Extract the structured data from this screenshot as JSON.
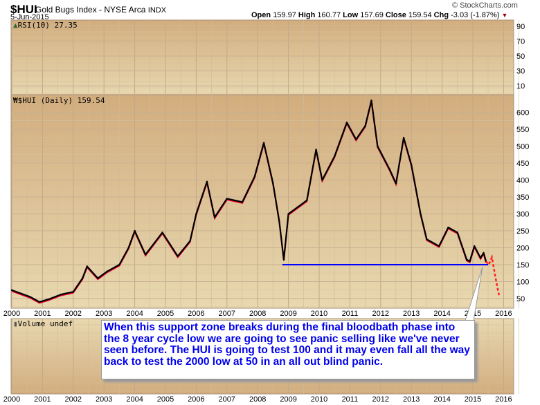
{
  "header": {
    "symbol": "$HUI",
    "name": "Gold Bugs Index - NYSE Arca",
    "exchange": "INDX",
    "date": "5-Jun-2015",
    "watermark": "© StockCharts.com",
    "quote": {
      "open_label": "Open",
      "open": "159.97",
      "high_label": "High",
      "high": "160.77",
      "low_label": "Low",
      "low": "157.69",
      "close_label": "Close",
      "close": "159.54",
      "chg_label": "Chg",
      "chg": "-3.03 (-1.87%)"
    }
  },
  "colors": {
    "panel_top": "#d2ad7e",
    "panel_bottom": "#e8d7ae",
    "price": "#000000",
    "down": "#e8002a",
    "support": "#0000ff",
    "projection": "#ff2020",
    "callout_text": "#0000ee"
  },
  "rsi_panel": {
    "label": "RSI(10) 27.35",
    "ticks": [
      90,
      70,
      50,
      30,
      10
    ]
  },
  "volume_panel": {
    "label": "Volume undef"
  },
  "callout": {
    "text": "When this support zone breaks during the final bloodbath phase into the 8 year cycle low we are going to see panic selling like we've never seen before. The HUI is going to test 100 and it may even fall all the way back to test the 2000 low at 50 in an all out blind panic."
  },
  "chart_data": {
    "type": "line",
    "title": "$HUI (Daily) 159.54",
    "x_ticks": [
      "2000",
      "2001",
      "2002",
      "2003",
      "2004",
      "2005",
      "2006",
      "2007",
      "2008",
      "2009",
      "2010",
      "2011",
      "2012",
      "2013",
      "2014",
      "2015",
      "2016"
    ],
    "y_ticks": [
      50,
      100,
      150,
      200,
      250,
      300,
      350,
      400,
      450,
      500,
      550,
      600
    ],
    "xlim": [
      2000,
      2016.3
    ],
    "ylim": [
      30,
      660
    ],
    "series": [
      {
        "values": [
          [
            2000.0,
            75
          ],
          [
            2000.3,
            65
          ],
          [
            2000.6,
            55
          ],
          [
            2000.9,
            40
          ],
          [
            2001.2,
            48
          ],
          [
            2001.6,
            62
          ],
          [
            2002.0,
            70
          ],
          [
            2002.3,
            110
          ],
          [
            2002.45,
            145
          ],
          [
            2002.8,
            110
          ],
          [
            2003.1,
            130
          ],
          [
            2003.5,
            150
          ],
          [
            2003.8,
            200
          ],
          [
            2004.0,
            250
          ],
          [
            2004.35,
            180
          ],
          [
            2004.9,
            245
          ],
          [
            2005.4,
            175
          ],
          [
            2005.8,
            220
          ],
          [
            2006.0,
            300
          ],
          [
            2006.35,
            395
          ],
          [
            2006.6,
            290
          ],
          [
            2007.0,
            345
          ],
          [
            2007.5,
            335
          ],
          [
            2007.9,
            410
          ],
          [
            2008.2,
            510
          ],
          [
            2008.5,
            390
          ],
          [
            2008.7,
            280
          ],
          [
            2008.85,
            165
          ],
          [
            2009.0,
            300
          ],
          [
            2009.3,
            320
          ],
          [
            2009.6,
            340
          ],
          [
            2009.9,
            490
          ],
          [
            2010.1,
            400
          ],
          [
            2010.5,
            470
          ],
          [
            2010.9,
            570
          ],
          [
            2011.2,
            520
          ],
          [
            2011.5,
            560
          ],
          [
            2011.7,
            635
          ],
          [
            2011.9,
            500
          ],
          [
            2012.3,
            430
          ],
          [
            2012.5,
            390
          ],
          [
            2012.75,
            525
          ],
          [
            2013.0,
            445
          ],
          [
            2013.3,
            300
          ],
          [
            2013.5,
            225
          ],
          [
            2013.9,
            205
          ],
          [
            2014.2,
            260
          ],
          [
            2014.5,
            245
          ],
          [
            2014.8,
            165
          ],
          [
            2014.9,
            160
          ],
          [
            2015.05,
            205
          ],
          [
            2015.25,
            170
          ],
          [
            2015.35,
            185
          ],
          [
            2015.43,
            159.54
          ]
        ]
      }
    ],
    "support_line": {
      "value": 150,
      "from": 2008.8,
      "to": 2015.5
    },
    "projection": [
      [
        2015.43,
        159.54
      ],
      [
        2015.52,
        150
      ],
      [
        2015.62,
        172
      ],
      [
        2015.72,
        120
      ],
      [
        2015.85,
        60
      ]
    ]
  }
}
